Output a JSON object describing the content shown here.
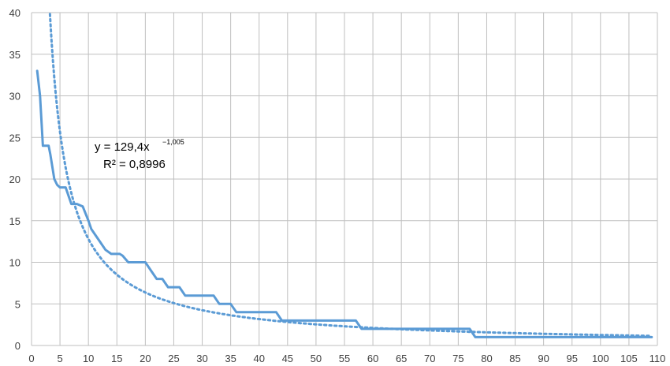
{
  "chart_data": {
    "type": "line",
    "xlim": [
      0,
      110
    ],
    "ylim": [
      0,
      40
    ],
    "x_ticks": [
      0,
      5,
      10,
      15,
      20,
      25,
      30,
      35,
      40,
      45,
      50,
      55,
      60,
      65,
      70,
      75,
      80,
      85,
      90,
      95,
      100,
      105,
      110
    ],
    "y_ticks": [
      0,
      5,
      10,
      15,
      20,
      25,
      30,
      35,
      40
    ],
    "x_tick_labels": [
      "0",
      "5",
      "10",
      "15",
      "20",
      "25",
      "30",
      "35",
      "40",
      "45",
      "50",
      "55",
      "60",
      "65",
      "70",
      "75",
      "80",
      "85",
      "90",
      "95",
      "100",
      "105",
      "110"
    ],
    "y_tick_labels": [
      "0",
      "5",
      "10",
      "15",
      "20",
      "25",
      "30",
      "35",
      "40"
    ],
    "grid": true,
    "colors": {
      "series": "#5b9bd5",
      "grid": "#bfbfbf",
      "axis": "#bfbfbf"
    },
    "series": [
      {
        "style": "solid",
        "points": [
          [
            1,
            33
          ],
          [
            1.5,
            30
          ],
          [
            2,
            24
          ],
          [
            3,
            24
          ],
          [
            3.3,
            23
          ],
          [
            4,
            20
          ],
          [
            4.5,
            19.3
          ],
          [
            5,
            19
          ],
          [
            6,
            19
          ],
          [
            6.5,
            18
          ],
          [
            7,
            17
          ],
          [
            8,
            17
          ],
          [
            9,
            16.7
          ],
          [
            10,
            15
          ],
          [
            10.5,
            14
          ],
          [
            11,
            13.5
          ],
          [
            12,
            12.5
          ],
          [
            13,
            11.5
          ],
          [
            14,
            11
          ],
          [
            15.5,
            11
          ],
          [
            16,
            10.8
          ],
          [
            17,
            10
          ],
          [
            18,
            10
          ],
          [
            19,
            10
          ],
          [
            20,
            10
          ],
          [
            21,
            9
          ],
          [
            22,
            8
          ],
          [
            23,
            8
          ],
          [
            24,
            7
          ],
          [
            25,
            7
          ],
          [
            26,
            7
          ],
          [
            27,
            6
          ],
          [
            28,
            6
          ],
          [
            30,
            6
          ],
          [
            32,
            6
          ],
          [
            33,
            5
          ],
          [
            34,
            5
          ],
          [
            35,
            5
          ],
          [
            36,
            4
          ],
          [
            38,
            4
          ],
          [
            40,
            4
          ],
          [
            42,
            4
          ],
          [
            43,
            4
          ],
          [
            44,
            3
          ],
          [
            46,
            3
          ],
          [
            50,
            3
          ],
          [
            53,
            3
          ],
          [
            56,
            3
          ],
          [
            57,
            3
          ],
          [
            58,
            2
          ],
          [
            60,
            2
          ],
          [
            65,
            2
          ],
          [
            70,
            2
          ],
          [
            75,
            2
          ],
          [
            77,
            2
          ],
          [
            78,
            1
          ],
          [
            80,
            1
          ],
          [
            85,
            1
          ],
          [
            90,
            1
          ],
          [
            95,
            1
          ],
          [
            100,
            1
          ],
          [
            105,
            1
          ],
          [
            109,
            1
          ]
        ]
      },
      {
        "style": "dotted",
        "name": "",
        "trendline": {
          "type": "power",
          "a": 129.4,
          "b": -1.005,
          "x_range": [
            1,
            109
          ]
        }
      }
    ],
    "annotations": {
      "equation_main": "y = 129,4x",
      "equation_exp": "−1,005",
      "r_squared": "R² = 0,8996"
    }
  }
}
